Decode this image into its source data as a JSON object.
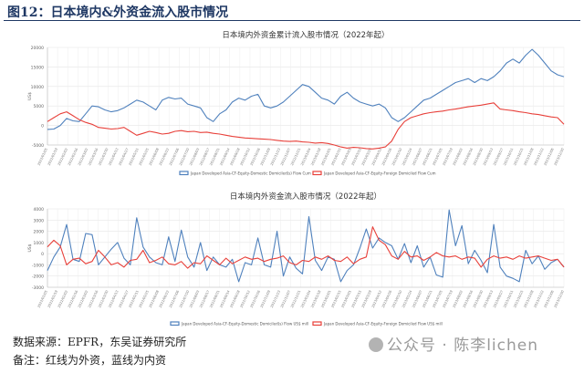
{
  "header": {
    "figure_title": "图12：日本境内&外资金流入股市情况"
  },
  "footer": {
    "source": "数据来源：EPFR，东吴证券研究所",
    "note": "备注：红线为外资，蓝线为内资",
    "watermark": "公众号 · 陈李lichen"
  },
  "colors": {
    "domestic": "#4f81bd",
    "foreign": "#e8403a",
    "title": "#1f3864"
  },
  "chart_data": [
    {
      "type": "line",
      "title": "日本境内外资金累计流入股市情况（2022年起）",
      "xlabel": "",
      "ylabel": "US$",
      "ylim": [
        -5000,
        20000
      ],
      "yticks": [
        -5000,
        0,
        5000,
        10000,
        15000,
        20000
      ],
      "x_tick_labels": [
        "2022/01/05",
        "2022/01/19",
        "2022/02/02",
        "2022/02/16",
        "2022/03/02",
        "2022/03/16",
        "2022/03/30",
        "2022/04/13",
        "2022/04/27",
        "2022/05/11",
        "2022/05/25",
        "2022/06/08",
        "2022/06/22",
        "2022/07/06",
        "2022/07/20",
        "2022/08/03",
        "2022/08/17",
        "2022/08/31",
        "2022/09/14",
        "2022/09/28",
        "2022/10/12",
        "2022/10/26",
        "2022/11/09",
        "2022/11/23",
        "2022/12/07",
        "2022/12/21",
        "2023/01/04",
        "2023/01/18",
        "2023/02/01",
        "2023/02/15",
        "2023/03/01",
        "2023/03/15",
        "2023/03/29",
        "2023/04/12",
        "2023/04/26",
        "2023/05/10",
        "2023/05/24",
        "2023/06/07",
        "2023/06/21",
        "2023/07/05",
        "2023/07/19",
        "2023/08/02",
        "2023/08/16",
        "2023/08/30",
        "2023/09/13",
        "2023/09/27",
        "2023/10/11",
        "2023/10/25",
        "2023/11/08",
        "2023/11/22",
        "2023/12/06",
        "2023/12/20"
      ],
      "grid": true,
      "legend_position": "bottom",
      "series": [
        {
          "name": "Japan Developed Asia-CF-Equity-Domestic Domiciled(s) Flow Cum",
          "color": "#4f81bd",
          "values": [
            -1000,
            -900,
            0,
            1800,
            1200,
            1000,
            3000,
            5000,
            4800,
            4000,
            3500,
            3800,
            4500,
            5500,
            6500,
            6000,
            5000,
            4000,
            6500,
            7200,
            6800,
            7000,
            5500,
            5000,
            4500,
            2000,
            1000,
            3000,
            4000,
            6000,
            7000,
            6500,
            7500,
            8000,
            5000,
            4500,
            5000,
            6000,
            7500,
            9000,
            10500,
            10000,
            8500,
            7000,
            6500,
            5500,
            7500,
            8500,
            7000,
            6000,
            5500,
            5000,
            5500,
            4500,
            2000,
            1000,
            2000,
            3500,
            5000,
            6500,
            7000,
            8000,
            9000,
            10000,
            11000,
            11500,
            12000,
            11000,
            12000,
            11500,
            12500,
            14000,
            16000,
            17000,
            16000,
            18000,
            19500,
            18000,
            16000,
            14000,
            13000,
            12500
          ]
        },
        {
          "name": "Japan Developed Asia-CF-Equity-Foreign Domiciled Flow Cum",
          "color": "#e8403a",
          "values": [
            1000,
            2000,
            3000,
            3500,
            2500,
            1500,
            800,
            300,
            -500,
            -700,
            -900,
            -800,
            -500,
            -1500,
            -2500,
            -2000,
            -1500,
            -1800,
            -2200,
            -2000,
            -1500,
            -1300,
            -1600,
            -1500,
            -1800,
            -1700,
            -2000,
            -2200,
            -2500,
            -2800,
            -3000,
            -3200,
            -3300,
            -3400,
            -3500,
            -3600,
            -3800,
            -4000,
            -4100,
            -4000,
            -4200,
            -4300,
            -4500,
            -4400,
            -4600,
            -5000,
            -5500,
            -5800,
            -5600,
            -5700,
            -5900,
            -6000,
            -5800,
            -5500,
            -4000,
            -1000,
            1000,
            2000,
            2500,
            3000,
            3300,
            3500,
            3700,
            4000,
            4200,
            4500,
            4800,
            5000,
            5200,
            5500,
            5800,
            4200,
            4000,
            3800,
            3500,
            3300,
            3000,
            2800,
            2500,
            2200,
            2000,
            300
          ]
        }
      ]
    },
    {
      "type": "line",
      "title": "日本境内外资金流入股市情况（2022年起）",
      "xlabel": "",
      "ylabel": "US$",
      "ylim": [
        -3000,
        4000
      ],
      "yticks": [
        -3000,
        -2000,
        -1000,
        0,
        1000,
        2000,
        3000,
        4000
      ],
      "x_tick_labels": [
        "2022/01/05",
        "2022/01/19",
        "2022/02/02",
        "2022/02/16",
        "2022/03/02",
        "2022/03/16",
        "2022/03/30",
        "2022/04/13",
        "2022/04/27",
        "2022/05/11",
        "2022/05/25",
        "2022/06/08",
        "2022/06/22",
        "2022/07/06",
        "2022/07/20",
        "2022/08/03",
        "2022/08/17",
        "2022/08/31",
        "2022/09/14",
        "2022/09/28",
        "2022/10/12",
        "2022/10/26",
        "2022/11/09",
        "2022/11/23",
        "2022/12/07",
        "2022/12/21",
        "2023/01/04",
        "2023/01/18",
        "2023/02/01",
        "2023/02/15",
        "2023/03/01",
        "2023/03/15",
        "2023/03/29",
        "2023/04/12",
        "2023/04/26",
        "2023/05/10",
        "2023/05/24",
        "2023/06/07",
        "2023/06/21",
        "2023/07/05",
        "2023/07/19",
        "2023/08/02",
        "2023/08/16",
        "2023/08/30",
        "2023/09/13",
        "2023/09/27",
        "2023/10/11",
        "2023/10/25",
        "2023/11/08",
        "2023/11/22",
        "2023/12/06",
        "2023/12/20"
      ],
      "grid": true,
      "legend_position": "bottom",
      "series": [
        {
          "name": "Japan Developed Asia-CF-Equity-Domestic Domiciled(s) Flow US$ mill",
          "color": "#4f81bd",
          "values": [
            -1500,
            -300,
            600,
            2600,
            -500,
            -700,
            1800,
            1700,
            -1000,
            -300,
            400,
            1000,
            -400,
            -1000,
            3200,
            600,
            -300,
            -800,
            -1000,
            1500,
            -700,
            2100,
            -300,
            -1200,
            1000,
            -1500,
            -300,
            -1000,
            -1200,
            -500,
            -2500,
            -800,
            -1000,
            1400,
            -1000,
            -1200,
            2000,
            -2000,
            -300,
            -1300,
            -1800,
            3300,
            -600,
            -1500,
            -300,
            -500,
            -2500,
            -1500,
            -1000,
            500,
            2200,
            500,
            1400,
            1000,
            700,
            -500,
            900,
            -800,
            700,
            -1200,
            -300,
            -1900,
            -2100,
            3900,
            700,
            2500,
            -900,
            300,
            -600,
            -1700,
            2600,
            -1200,
            -2000,
            -2200,
            -2500,
            300,
            -900,
            -200,
            -1400,
            -800,
            -500,
            -1200
          ]
        },
        {
          "name": "Japan Developed Asia-CF-Equity-Foreign Domiciled Flow US$ mill",
          "color": "#e8403a",
          "values": [
            600,
            1200,
            700,
            -1000,
            -500,
            -400,
            -900,
            -700,
            300,
            -300,
            -1000,
            -800,
            -1200,
            -600,
            -500,
            300,
            -800,
            -600,
            -300,
            -900,
            -1000,
            -700,
            -1300,
            -800,
            -900,
            -200,
            -600,
            -1000,
            -400,
            -900,
            -600,
            -300,
            -500,
            -400,
            -700,
            -500,
            -400,
            -200,
            -800,
            -1000,
            -600,
            -700,
            -300,
            -500,
            -200,
            -600,
            -700,
            -300,
            -900,
            -500,
            -300,
            2400,
            1200,
            800,
            -200,
            -500,
            200,
            -300,
            -200,
            -600,
            -300,
            100,
            -200,
            -300,
            -200,
            -500,
            -300,
            -400,
            -1200,
            -500,
            -200,
            -400,
            -300,
            -500,
            -200,
            -400,
            -300,
            -200,
            -400,
            -600,
            -500,
            -1200
          ]
        }
      ]
    }
  ]
}
